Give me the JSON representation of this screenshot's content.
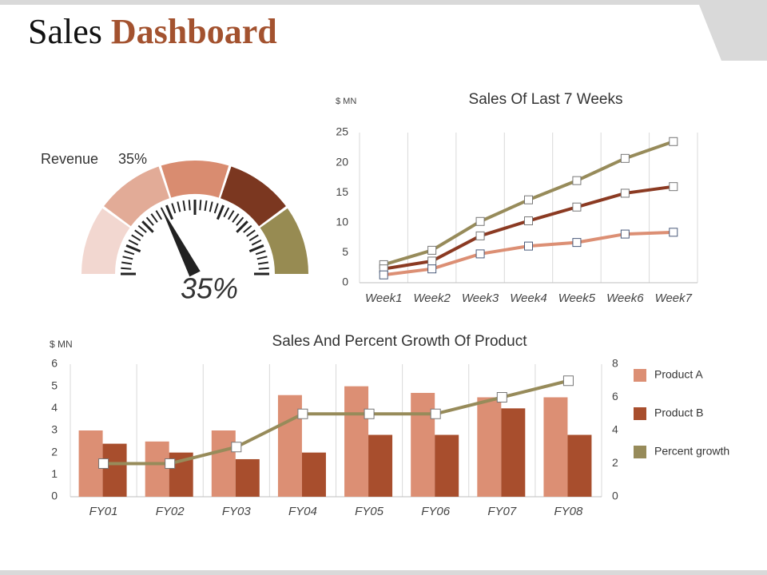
{
  "header": {
    "title_first": "Sales",
    "title_second": "Dashboard"
  },
  "chart_data": [
    {
      "type": "gauge",
      "label": "Revenue",
      "values": [
        35
      ],
      "value_labels": [
        "35%"
      ],
      "ylim": [
        0,
        100
      ],
      "colors": [
        "#f2d7d0",
        "#e2ab97",
        "#d98c70",
        "#7b3720",
        "#978b52"
      ]
    },
    {
      "type": "line",
      "title": "Sales Of Last 7 Weeks",
      "y_label": "$ MN",
      "categories": [
        "Week1",
        "Week2",
        "Week3",
        "Week4",
        "Week5",
        "Week6",
        "Week7"
      ],
      "series": [
        {
          "color": "#978b5a",
          "values": [
            3,
            5.4,
            10.2,
            13.8,
            17,
            20.7,
            23.5
          ]
        },
        {
          "color": "#8b3a22",
          "values": [
            2.3,
            3.6,
            7.8,
            10.3,
            12.6,
            14.9,
            16
          ]
        },
        {
          "color": "#dc8f74",
          "values": [
            1.3,
            2.3,
            4.8,
            6.1,
            6.7,
            8.1,
            8.4
          ]
        }
      ],
      "ylim": [
        0,
        25
      ],
      "yticks": [
        0,
        5,
        10,
        15,
        20,
        25
      ],
      "grid": true
    },
    {
      "type": "combo",
      "title": "Sales And Percent Growth Of Product",
      "y_label": "$ MN",
      "categories": [
        "FY01",
        "FY02",
        "FY03",
        "FY04",
        "FY05",
        "FY06",
        "FY07",
        "FY08"
      ],
      "series": [
        {
          "name": "Product A",
          "type": "bar",
          "color": "#dc8f74",
          "values": [
            3,
            2.5,
            3,
            4.6,
            5,
            4.7,
            4.5,
            4.5
          ]
        },
        {
          "name": "Product B",
          "type": "bar",
          "color": "#a84e2d",
          "values": [
            2.4,
            2,
            1.7,
            2,
            2.8,
            2.8,
            4,
            2.8
          ]
        },
        {
          "name": "Percent growth",
          "type": "line",
          "axis": "y2",
          "color": "#978b5a",
          "values": [
            2,
            2,
            3,
            5,
            5,
            5,
            6,
            7
          ]
        }
      ],
      "ylim": [
        0,
        6
      ],
      "yticks": [
        0,
        1,
        2,
        3,
        4,
        5,
        6
      ],
      "y2lim": [
        0,
        8
      ],
      "y2ticks": [
        0,
        2,
        4,
        6,
        8
      ],
      "grid": true,
      "legend": "right"
    }
  ]
}
